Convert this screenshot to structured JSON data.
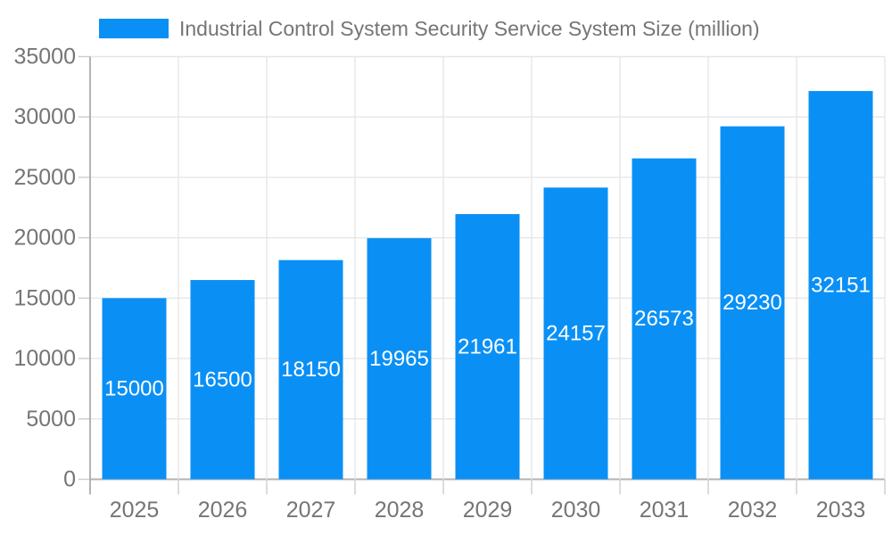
{
  "legend": {
    "label": "Industrial Control System Security Service System Size (million)"
  },
  "chart_data": {
    "type": "bar",
    "title": "Industrial Control System Security Service System Size (million)",
    "series_name": "Industrial Control System Security Service System Size (million)",
    "categories": [
      "2025",
      "2026",
      "2027",
      "2028",
      "2029",
      "2030",
      "2031",
      "2032",
      "2033"
    ],
    "values": [
      15000,
      16500,
      18150,
      19965,
      21961,
      24157,
      26573,
      29230,
      32151
    ],
    "value_labels": [
      "15000",
      "16500",
      "18150",
      "19965",
      "21961",
      "24157",
      "26573",
      "29230",
      "32151"
    ],
    "xlabel": "",
    "ylabel": "",
    "ylim": [
      0,
      35000
    ],
    "ytick_step": 5000,
    "ytick_labels": [
      "0",
      "5000",
      "10000",
      "15000",
      "20000",
      "25000",
      "30000",
      "35000"
    ],
    "grid": true,
    "legend_position": "top-left",
    "colors": {
      "bar": "#0A90F5",
      "value_label": "#ffffff",
      "axis_text": "#757575",
      "gridline": "#e6e6e6",
      "axis_line": "#b3b3b3",
      "tick": "#cccccc"
    }
  }
}
